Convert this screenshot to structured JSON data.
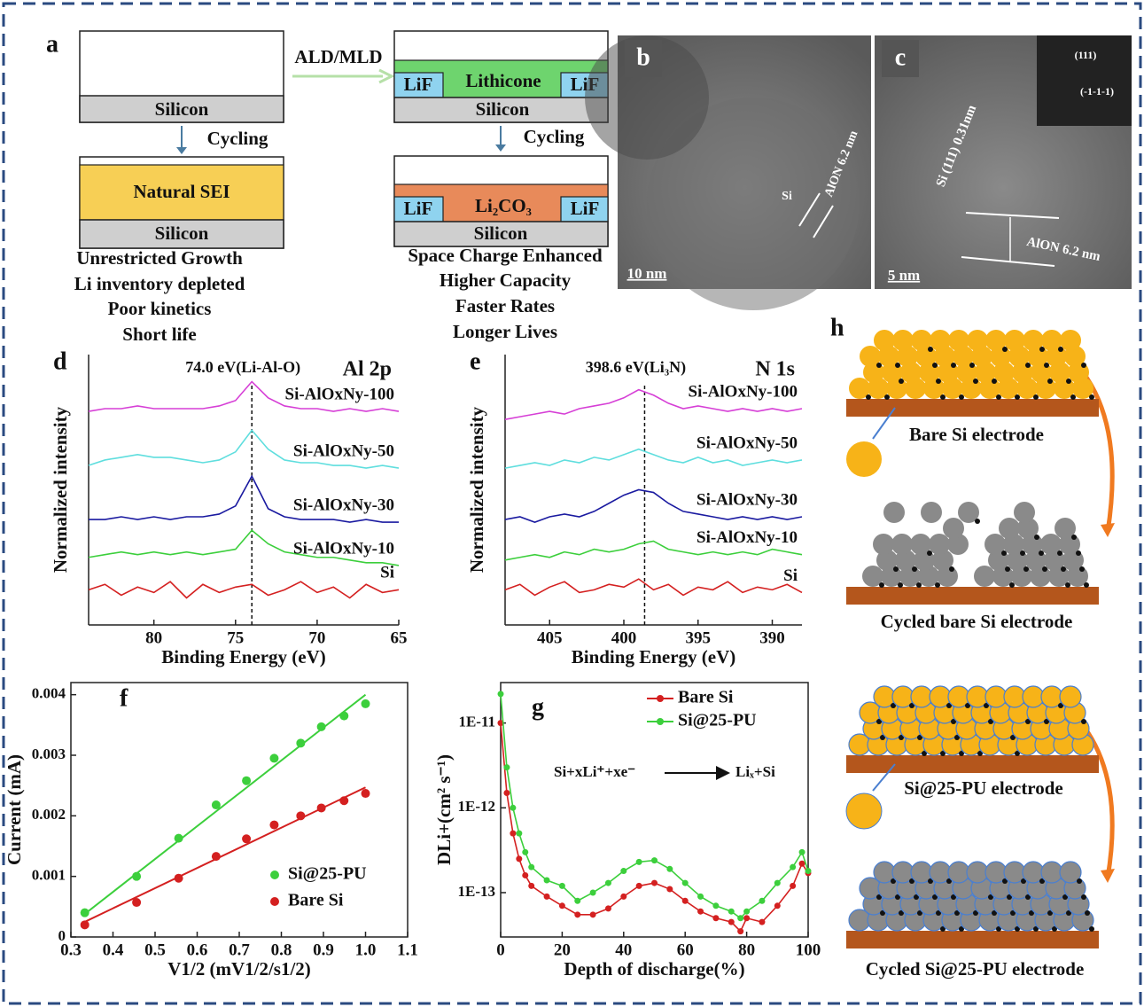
{
  "panel_a": {
    "label": "a",
    "arrow_label": "ALD/MLD",
    "left": {
      "substrate": "Silicon",
      "cycling": "Cycling",
      "layer": "Natural SEI",
      "substrate_after": "Silicon",
      "notes": [
        "Unrestricted Growth",
        "Li inventory depleted",
        "Poor kinetics",
        "Short life"
      ]
    },
    "right": {
      "lif": [
        "LiF",
        "LiF"
      ],
      "coating": "Lithicone",
      "substrate": "Silicon",
      "cycling": "Cycling",
      "lif_after": [
        "LiF",
        "LiF"
      ],
      "layer": "Li₂CO₃",
      "substrate_after": "Silicon",
      "notes": [
        "Space Charge Enhanced",
        "Higher Capacity",
        "Faster Rates",
        "Longer Lives"
      ]
    }
  },
  "panel_b": {
    "label": "b",
    "scale": "10 nm",
    "si": "Si",
    "layer": "AlON 6.2 nm"
  },
  "panel_c": {
    "label": "c",
    "scale": "5 nm",
    "lattice": "Si (111) 0.31nm",
    "layer": "AlON 6.2 nm",
    "fft": [
      "(111)",
      "(-1-1-1)"
    ]
  },
  "panel_h": {
    "label": "h",
    "captions": [
      "Bare Si electrode",
      "Cycled bare Si electrode",
      "Si@25-PU electrode",
      "Cycled Si@25-PU electrode"
    ]
  },
  "chart_data": [
    {
      "type": "spectrum",
      "panel_label": "d",
      "title": "Al 2p",
      "annotation": "74.0 eV(Li-Al-O)",
      "peak_x": 74.0,
      "x_label": "Binding Energy (eV)",
      "y_label": "Normalized intensity",
      "xlim": [
        84,
        65
      ],
      "xticks": [
        80,
        75,
        70,
        65
      ],
      "ylim": [
        0,
        10
      ],
      "x": [
        84,
        83,
        82,
        81,
        80,
        79,
        78,
        77,
        76,
        75,
        74,
        73,
        72,
        71,
        70,
        69,
        68,
        67,
        66,
        65
      ],
      "series": [
        {
          "name": "Si-AlOxNy-100",
          "color": "#d63fd6",
          "values": [
            7.9,
            8.0,
            8.0,
            8.1,
            8.0,
            8.0,
            8.0,
            8.0,
            8.1,
            8.3,
            9.0,
            8.4,
            8.1,
            8.0,
            8.0,
            7.9,
            8.0,
            7.9,
            8.0,
            7.9
          ]
        },
        {
          "name": "Si-AlOxNy-50",
          "color": "#5fdede",
          "values": [
            5.9,
            6.1,
            6.2,
            6.3,
            6.2,
            6.2,
            6.1,
            6.0,
            6.1,
            6.4,
            7.2,
            6.5,
            6.1,
            6.0,
            6.0,
            5.9,
            5.9,
            5.8,
            5.9,
            5.8
          ]
        },
        {
          "name": "Si-AlOxNy-30",
          "color": "#1a1aa0",
          "values": [
            3.9,
            3.9,
            4.0,
            3.9,
            4.0,
            3.9,
            4.0,
            4.0,
            4.1,
            4.4,
            5.5,
            4.3,
            4.0,
            3.9,
            3.9,
            3.9,
            3.8,
            3.9,
            3.8,
            3.8
          ]
        },
        {
          "name": "Si-AlOxNy-10",
          "color": "#3ccf3c",
          "values": [
            2.5,
            2.6,
            2.7,
            2.6,
            2.7,
            2.6,
            2.7,
            2.6,
            2.7,
            2.8,
            3.5,
            3.0,
            2.7,
            2.6,
            2.5,
            2.5,
            2.4,
            2.3,
            2.3,
            2.2
          ]
        },
        {
          "name": "Si",
          "color": "#d42020",
          "values": [
            1.3,
            1.5,
            1.1,
            1.4,
            1.2,
            1.6,
            1.0,
            1.5,
            1.2,
            1.4,
            1.5,
            1.1,
            1.3,
            1.6,
            1.2,
            1.4,
            1.0,
            1.5,
            1.2,
            1.3
          ]
        }
      ]
    },
    {
      "type": "spectrum",
      "panel_label": "e",
      "title": "N 1s",
      "annotation": "398.6 eV(Li₃N)",
      "peak_x": 398.6,
      "x_label": "Binding Energy (eV)",
      "y_label": "Normalized intensity",
      "xlim": [
        408,
        388
      ],
      "xticks": [
        405,
        400,
        395,
        390
      ],
      "ylim": [
        0,
        10
      ],
      "x": [
        408,
        407,
        406,
        405,
        404,
        403,
        402,
        401,
        400,
        399,
        398,
        397,
        396,
        395,
        394,
        393,
        392,
        391,
        390,
        389,
        388
      ],
      "series": [
        {
          "name": "Si-AlOxNy-100",
          "color": "#d63fd6",
          "values": [
            7.6,
            7.7,
            7.8,
            7.9,
            7.8,
            8.0,
            8.1,
            8.2,
            8.4,
            8.7,
            8.5,
            8.2,
            8.0,
            8.1,
            8.0,
            7.9,
            8.0,
            7.9,
            8.0,
            7.9,
            8.0
          ]
        },
        {
          "name": "Si-AlOxNy-50",
          "color": "#5fdede",
          "values": [
            5.8,
            5.9,
            6.0,
            5.9,
            6.1,
            6.0,
            6.2,
            6.1,
            6.3,
            6.5,
            6.3,
            6.1,
            6.0,
            6.2,
            6.0,
            6.1,
            5.9,
            6.0,
            6.1,
            6.0,
            6.1
          ]
        },
        {
          "name": "Si-AlOxNy-30",
          "color": "#1a1aa0",
          "values": [
            3.9,
            4.0,
            3.8,
            4.0,
            4.1,
            4.0,
            4.2,
            4.5,
            4.8,
            5.0,
            4.9,
            4.5,
            4.2,
            4.1,
            4.0,
            3.9,
            4.0,
            3.9,
            4.0,
            3.9,
            4.0
          ]
        },
        {
          "name": "Si-AlOxNy-10",
          "color": "#3ccf3c",
          "values": [
            2.4,
            2.5,
            2.6,
            2.5,
            2.7,
            2.6,
            2.8,
            2.7,
            2.8,
            3.0,
            3.1,
            2.8,
            2.7,
            2.6,
            2.7,
            2.6,
            2.7,
            2.6,
            2.8,
            2.7,
            2.6
          ]
        },
        {
          "name": "Si",
          "color": "#d42020",
          "values": [
            1.3,
            1.5,
            1.1,
            1.4,
            1.6,
            1.2,
            1.3,
            1.5,
            1.4,
            1.7,
            1.3,
            1.5,
            1.1,
            1.4,
            1.3,
            1.6,
            1.2,
            1.4,
            1.3,
            1.5,
            1.2
          ]
        }
      ]
    },
    {
      "type": "scatter",
      "panel_label": "f",
      "x_label": "V1/2 (mV1/2/s1/2)",
      "y_label": "Current (mA)",
      "xlim": [
        0.3,
        1.1
      ],
      "xticks": [
        0.3,
        0.4,
        0.5,
        0.6,
        0.7,
        0.8,
        0.9,
        {
          "value": 1,
          "label": "1.0"
        },
        1.1
      ],
      "ylim": [
        0,
        0.0042
      ],
      "yticks": [
        0,
        0.001,
        0.002,
        0.003,
        0.004
      ],
      "x": [
        0.333,
        0.456,
        0.556,
        0.645,
        0.717,
        0.783,
        0.846,
        0.895,
        0.949,
        1.0
      ],
      "series": [
        {
          "name": "Si@25-PU",
          "color": "#3ccf3c",
          "values": [
            0.0004,
            0.001,
            0.00163,
            0.00218,
            0.00258,
            0.00295,
            0.0032,
            0.00347,
            0.00365,
            0.00385
          ],
          "fit": {
            "x": [
              0.333,
              1.0
            ],
            "values": [
              0.00038,
              0.004
            ]
          }
        },
        {
          "name": "Bare Si",
          "color": "#d42020",
          "values": [
            0.0002,
            0.00057,
            0.00097,
            0.00133,
            0.00162,
            0.00185,
            0.002,
            0.00213,
            0.00225,
            0.00237
          ],
          "fit": {
            "x": [
              0.333,
              1.0
            ],
            "values": [
              0.00025,
              0.00247
            ]
          }
        }
      ]
    },
    {
      "type": "line",
      "panel_label": "g",
      "x_label": "Depth of discharge(%)",
      "y_label": "DLi+(cm² s⁻¹)",
      "log_y": true,
      "annotation": [
        "Si+xLi⁺+xe⁻",
        "Liₓ+Si"
      ],
      "xlim": [
        0,
        100
      ],
      "xticks": [
        0,
        20,
        40,
        60,
        80,
        100
      ],
      "ylim": [
        3e-14,
        3e-11
      ],
      "yticks": [
        {
          "value": 1e-11,
          "label": "1E-11"
        },
        {
          "value": 1e-12,
          "label": "1E-12"
        },
        {
          "value": 1e-13,
          "label": "1E-13"
        }
      ],
      "x": [
        0,
        2,
        4,
        6,
        8,
        10,
        15,
        20,
        25,
        30,
        35,
        40,
        45,
        50,
        55,
        60,
        65,
        70,
        75,
        78,
        80,
        85,
        90,
        95,
        98,
        100
      ],
      "series": [
        {
          "name": "Bare Si",
          "color": "#d42020",
          "values": [
            1e-11,
            1.5e-12,
            5e-13,
            2.5e-13,
            1.6e-13,
            1.2e-13,
            9e-14,
            7e-14,
            5.5e-14,
            5.5e-14,
            6.5e-14,
            9e-14,
            1.2e-13,
            1.3e-13,
            1.1e-13,
            8e-14,
            6e-14,
            5e-14,
            4.5e-14,
            3.5e-14,
            5e-14,
            4.5e-14,
            7e-14,
            1.2e-13,
            2.2e-13,
            1.7e-13
          ]
        },
        {
          "name": "Si@25-PU",
          "color": "#3ccf3c",
          "values": [
            2.2e-11,
            3e-12,
            1e-12,
            5e-13,
            3e-13,
            2e-13,
            1.4e-13,
            1.2e-13,
            8e-14,
            1e-13,
            1.3e-13,
            1.8e-13,
            2.3e-13,
            2.4e-13,
            1.9e-13,
            1.3e-13,
            9e-14,
            7e-14,
            6e-14,
            5e-14,
            6e-14,
            8e-14,
            1.3e-13,
            2e-13,
            3e-13,
            1.8e-13
          ]
        }
      ]
    }
  ]
}
